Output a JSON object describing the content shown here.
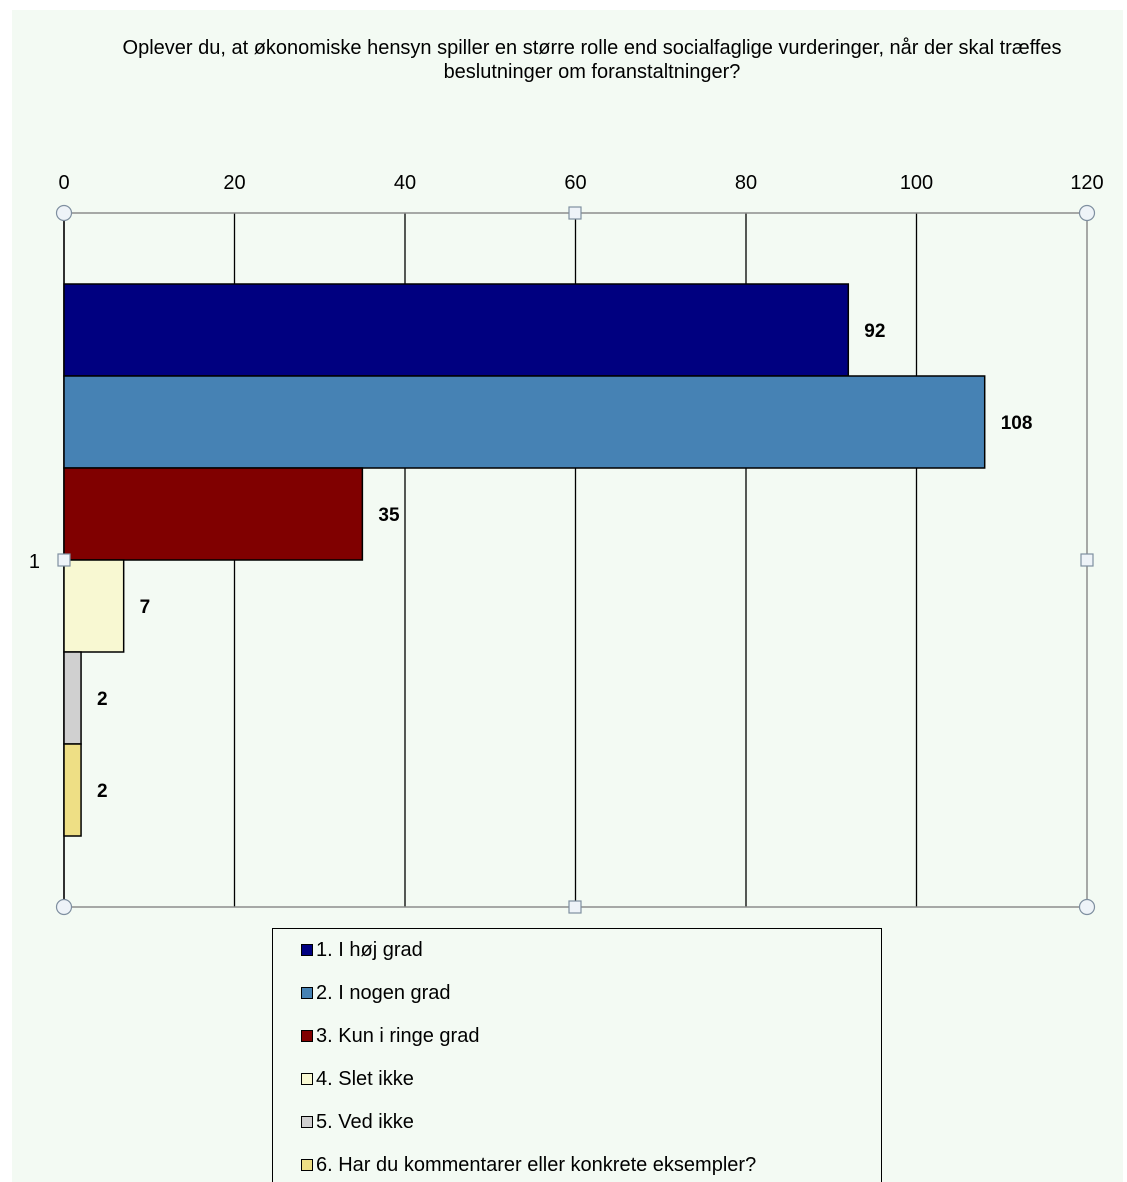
{
  "chart_data": {
    "type": "bar",
    "orientation": "horizontal",
    "title": "Oplever du, at økonomiske hensyn spiller en større rolle end socialfaglige vurderinger, når der skal træffes beslutninger  om foranstaltninger?",
    "categories": [
      "1"
    ],
    "x_ticks": [
      "0",
      "20",
      "40",
      "60",
      "80",
      "100",
      "120"
    ],
    "xlim": [
      0,
      120
    ],
    "grid": true,
    "legend_position": "bottom",
    "series": [
      {
        "name": "1. I høj grad",
        "values": [
          92
        ],
        "color": "#000080"
      },
      {
        "name": "2. I nogen grad",
        "values": [
          108
        ],
        "color": "#4682b4"
      },
      {
        "name": "3. Kun i ringe grad",
        "values": [
          35
        ],
        "color": "#800000"
      },
      {
        "name": "4. Slet ikke",
        "values": [
          7
        ],
        "color": "#f8f8d2"
      },
      {
        "name": "5. Ved ikke",
        "values": [
          2
        ],
        "color": "#d0d0d0"
      },
      {
        "name": "6. Har du kommentarer eller konkrete eksempler?",
        "values": [
          2
        ],
        "color": "#eedf85"
      }
    ]
  }
}
